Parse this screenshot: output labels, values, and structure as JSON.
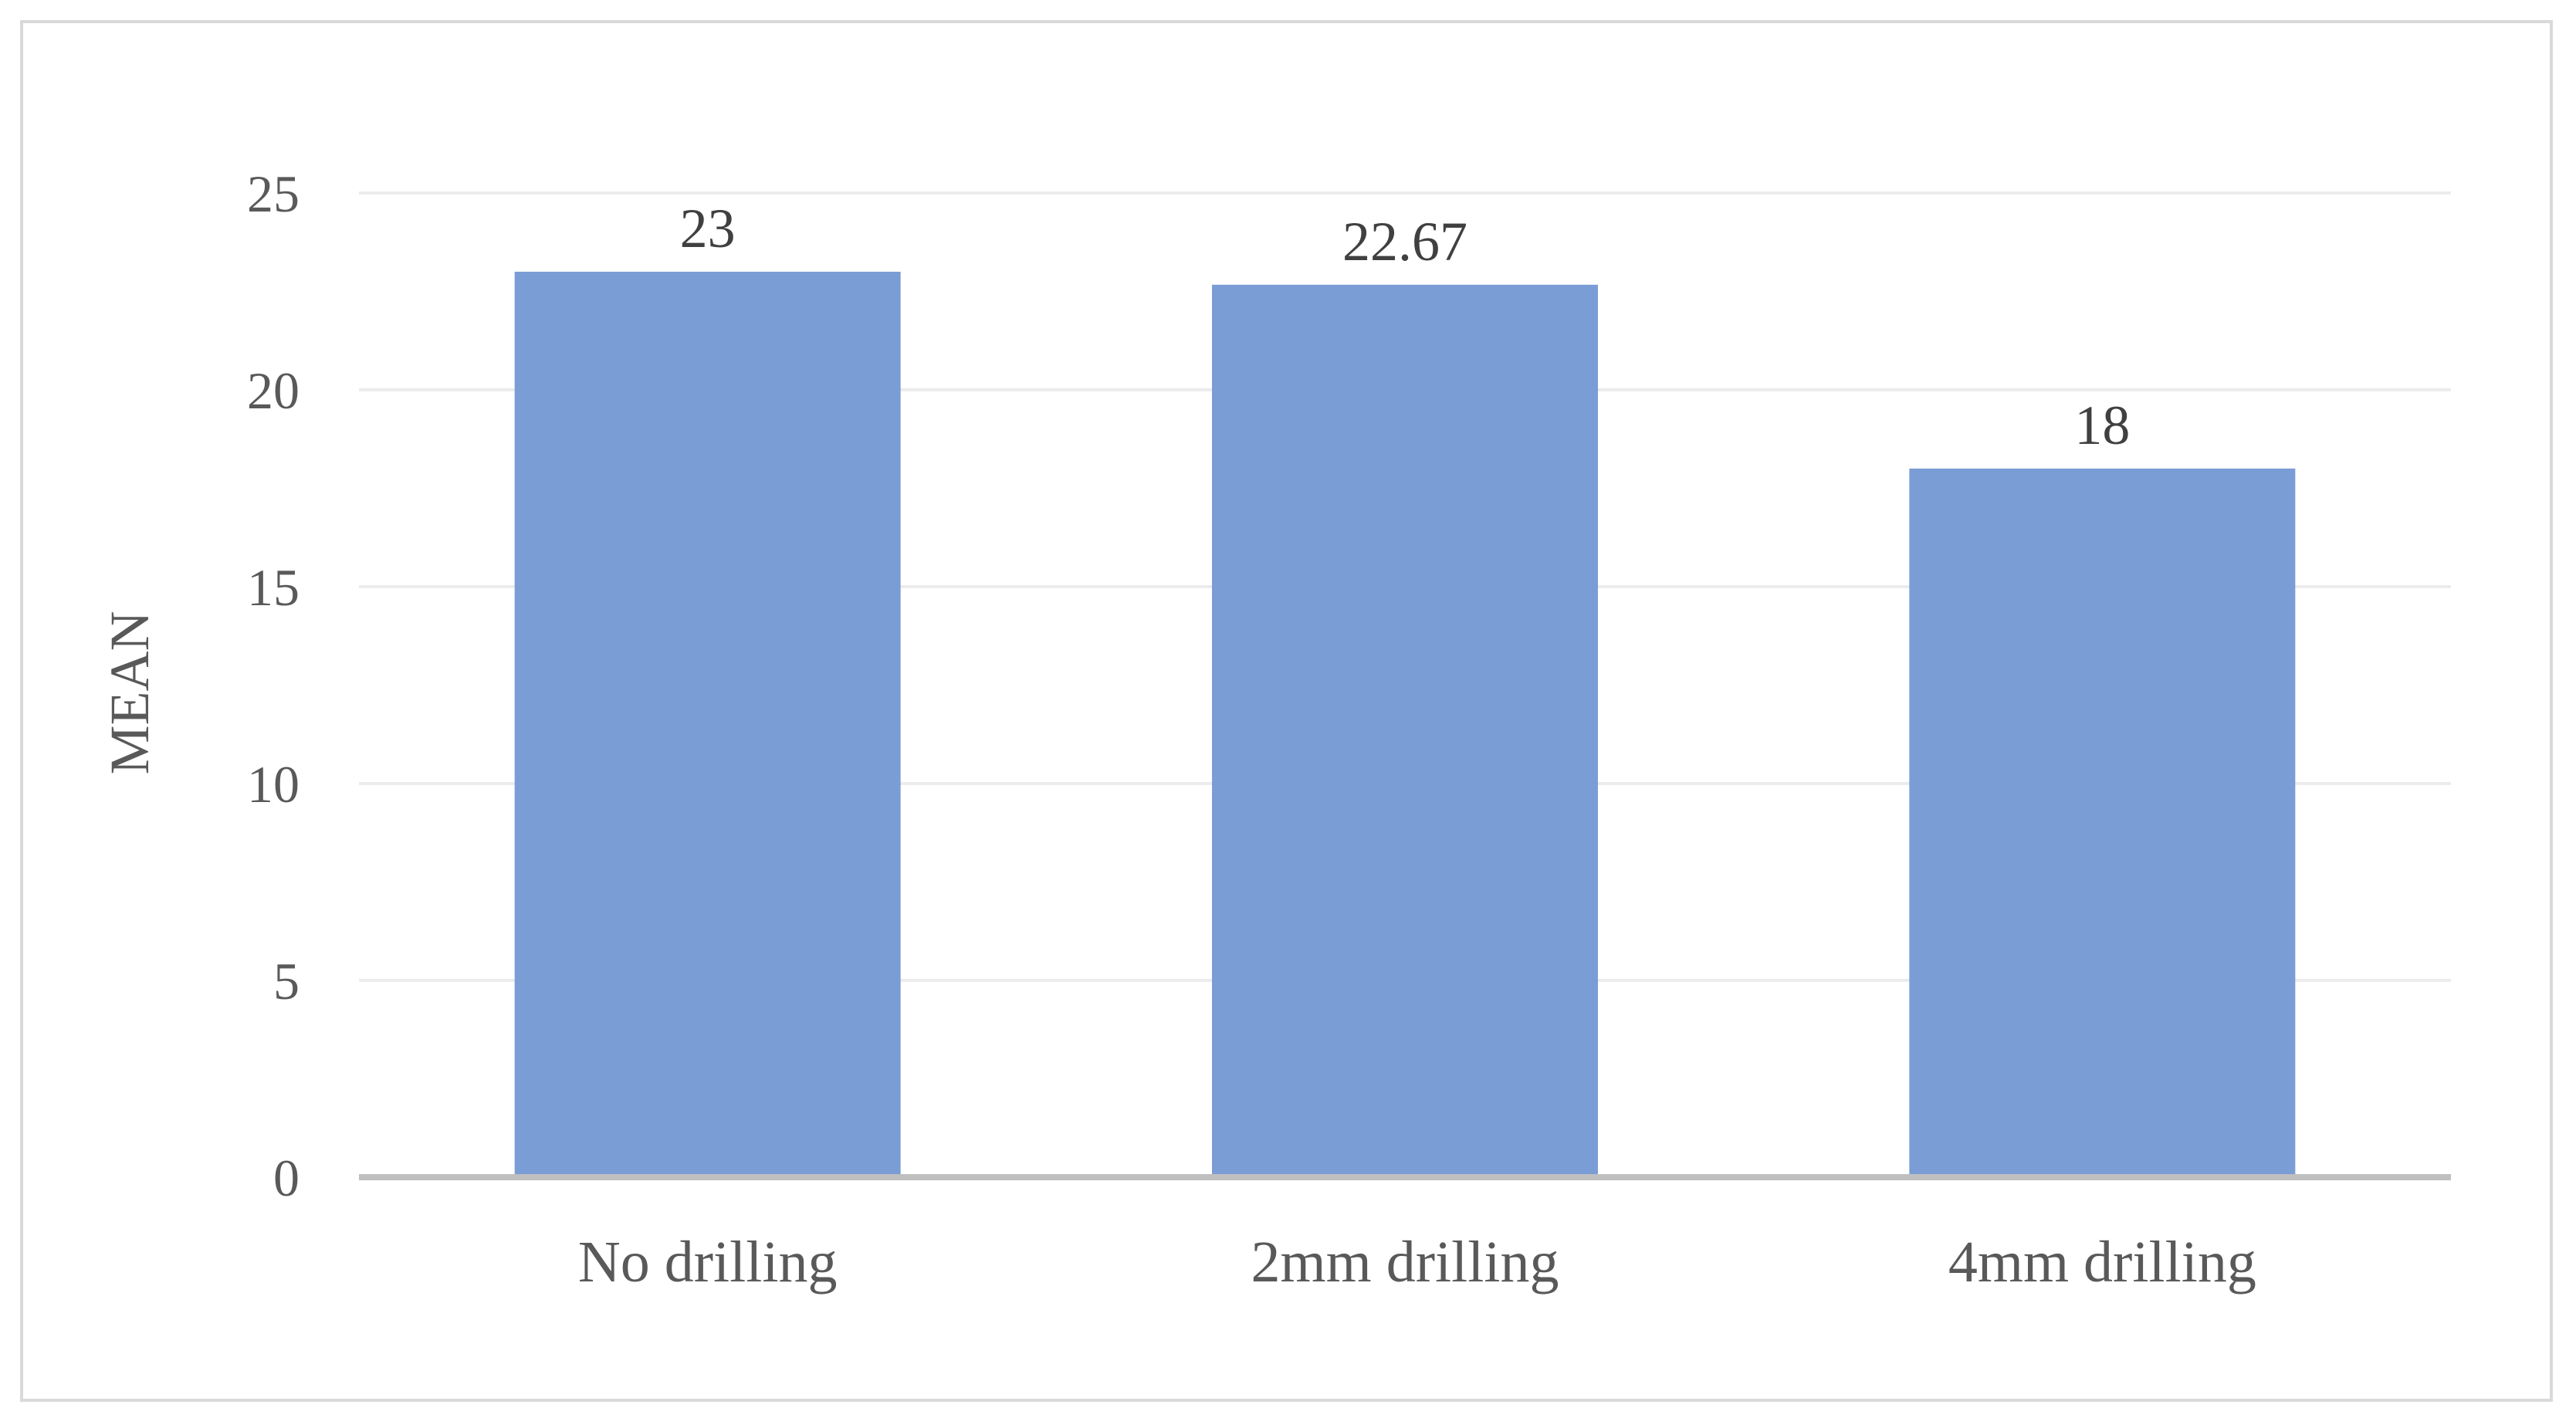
{
  "chart_data": {
    "type": "bar",
    "categories": [
      "No drilling",
      "2mm drilling",
      "4mm drilling"
    ],
    "values": [
      23,
      22.67,
      18
    ],
    "value_labels": [
      "23",
      "22.67",
      "18"
    ],
    "title": "",
    "xlabel": "",
    "ylabel": "MEAN",
    "ylim": [
      0,
      25
    ],
    "yticks": [
      0,
      5,
      10,
      15,
      20,
      25
    ],
    "grid": true,
    "legend": "none",
    "colors": {
      "bar": "#7b9dd5",
      "grid": "#ececec",
      "axis": "#bfbfbf"
    }
  }
}
